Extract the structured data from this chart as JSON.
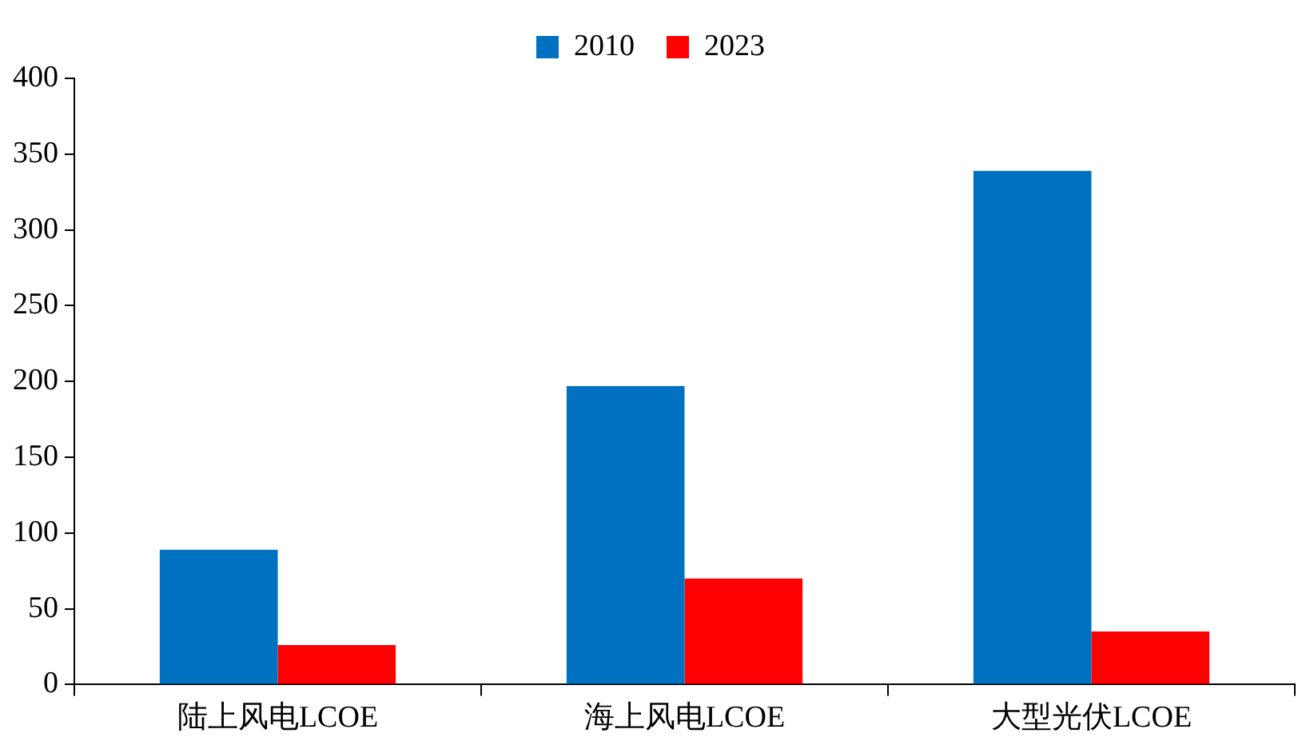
{
  "chart_data": {
    "type": "bar",
    "categories": [
      "陆上风电LCOE",
      "海上风电LCOE",
      "大型光伏LCOE"
    ],
    "series": [
      {
        "name": "2010",
        "color": "#0070c0",
        "values": [
          89,
          197,
          339
        ]
      },
      {
        "name": "2023",
        "color": "#ff0000",
        "values": [
          26,
          70,
          35
        ]
      }
    ],
    "ylim": [
      0,
      400
    ],
    "yticks": [
      0,
      50,
      100,
      150,
      200,
      250,
      300,
      350,
      400
    ],
    "grid": false,
    "legend": "top"
  }
}
